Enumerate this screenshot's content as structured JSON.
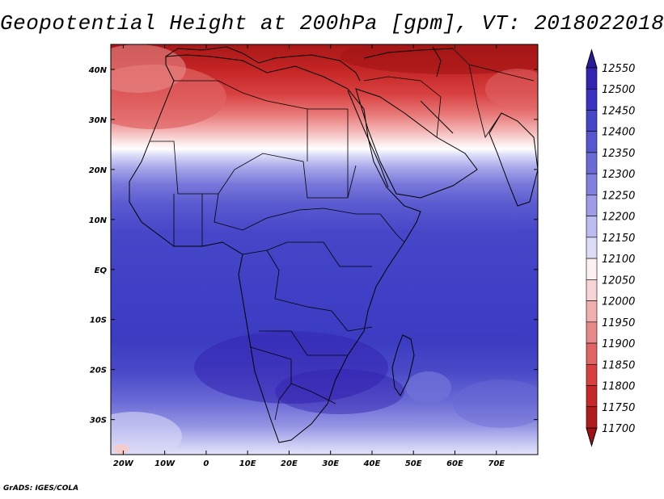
{
  "title": "Geopotential Height at 200hPa [gpm], VT: 2018022018",
  "credit": "GrADS: IGES/COLA",
  "map": {
    "lon_range": [
      -23,
      80
    ],
    "lat_range": [
      -37,
      45
    ],
    "x_ticks": [
      "20W",
      "10W",
      "0",
      "10E",
      "20E",
      "30E",
      "40E",
      "50E",
      "60E",
      "70E"
    ],
    "x_tick_values": [
      -20,
      -10,
      0,
      10,
      20,
      30,
      40,
      50,
      60,
      70
    ],
    "y_ticks": [
      "40N",
      "30N",
      "20N",
      "10N",
      "EQ",
      "10S",
      "20S",
      "30S"
    ],
    "y_tick_values": [
      40,
      30,
      20,
      10,
      0,
      -10,
      -20,
      -30
    ]
  },
  "colorbar": {
    "labels": [
      "12550",
      "12500",
      "12450",
      "12400",
      "12350",
      "12300",
      "12250",
      "12200",
      "12150",
      "12100",
      "12050",
      "12000",
      "11950",
      "11900",
      "11850",
      "11800",
      "11750",
      "11700"
    ],
    "top_color": "#2a1a9c",
    "bottom_color": "#9e1212",
    "colors": [
      "#2a1a9c",
      "#3124b0",
      "#3a32c0",
      "#4545c8",
      "#5656d0",
      "#6a6ad8",
      "#8080e0",
      "#9c9ce8",
      "#bcbcf0",
      "#dcdcf8",
      "#fdf0f0",
      "#f8d4d4",
      "#f0b0b0",
      "#e88888",
      "#e06464",
      "#d84040",
      "#c62828",
      "#b01c1c",
      "#9e1212"
    ]
  }
}
